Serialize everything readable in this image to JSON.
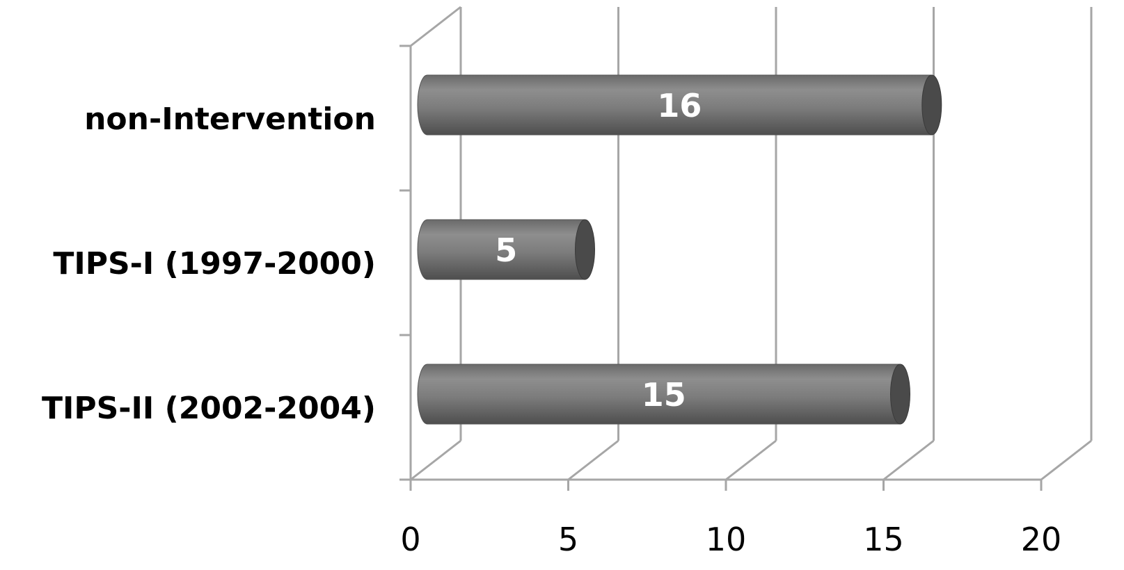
{
  "chart_data": {
    "type": "bar",
    "orientation": "horizontal",
    "style": "3d-cylinder",
    "categories": [
      "non-Intervention",
      "TIPS-I (1997-2000)",
      "TIPS-II (2002-2004)"
    ],
    "values": [
      16,
      5,
      15
    ],
    "data_labels": [
      "16",
      "5",
      "15"
    ],
    "xlim": [
      0,
      20
    ],
    "x_ticks": [
      0,
      5,
      10,
      15,
      20
    ],
    "x_tick_labels": [
      "0",
      "5",
      "10",
      "15",
      "20"
    ],
    "grid": true,
    "legend": "none",
    "title": "",
    "xlabel": "",
    "ylabel": "",
    "colors": {
      "bar": "#7a7a7a",
      "bar_cap": "#4a4a4a",
      "grid": "#a6a6a6",
      "data_label": "#ffffff"
    }
  }
}
